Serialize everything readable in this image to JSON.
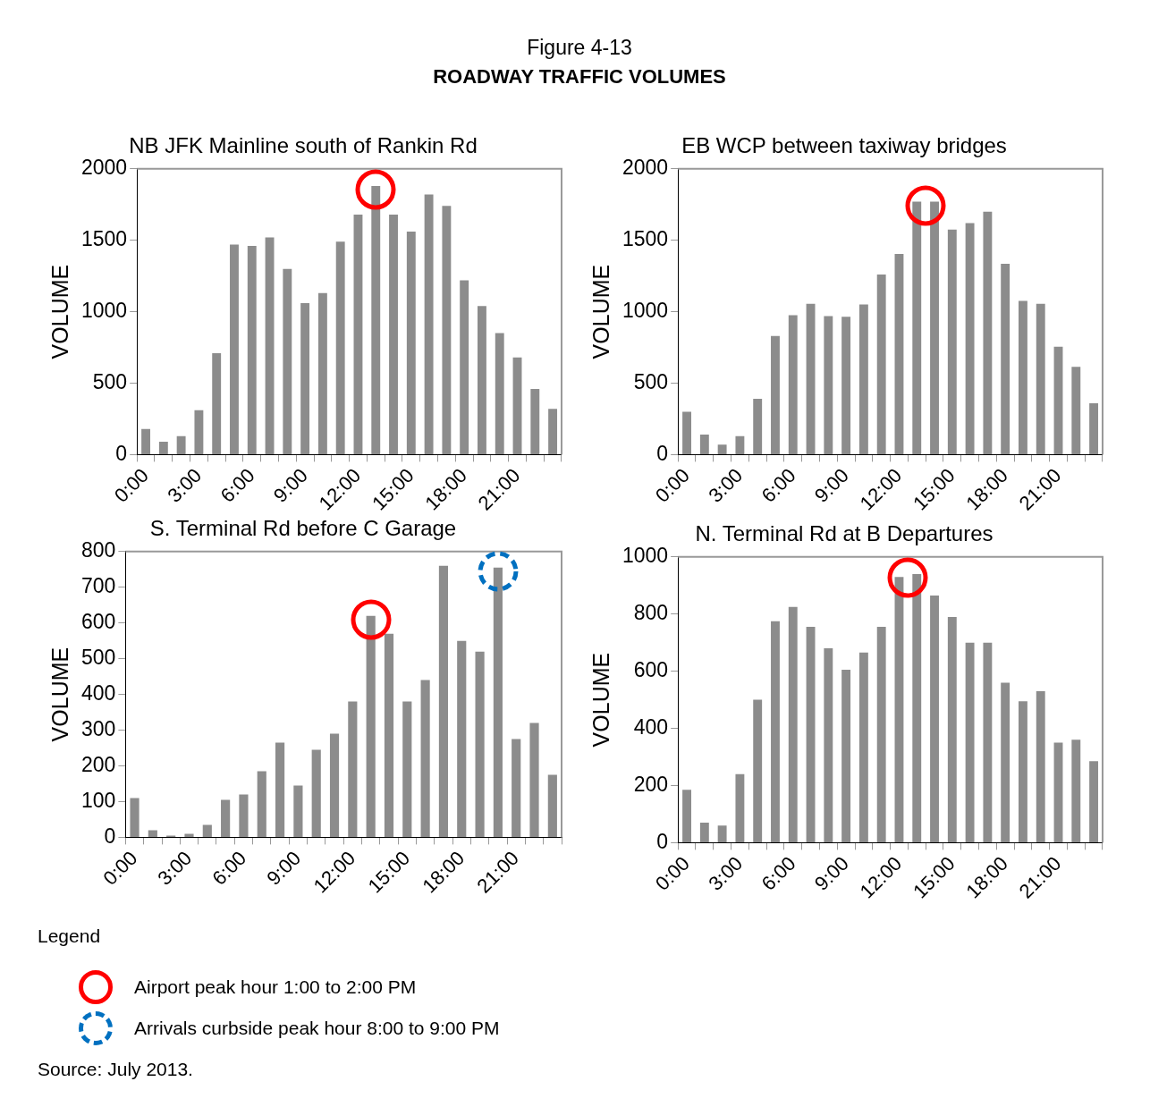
{
  "chart_data": [
    {
      "type": "other",
      "title": "Figure 4-13",
      "subtitle": "ROADWAY TRAFFIC VOLUMES"
    },
    {
      "type": "bar",
      "title": "NB JFK Mainline south of Rankin Rd",
      "ylabel": "VOLUME",
      "color": "#8c8c8c",
      "categories": [
        "0:00",
        null,
        null,
        "3:00",
        null,
        null,
        "6:00",
        null,
        null,
        "9:00",
        null,
        null,
        "12:00",
        null,
        null,
        "15:00",
        null,
        null,
        "18:00",
        null,
        null,
        "21:00",
        null,
        null
      ],
      "values": [
        180,
        90,
        130,
        310,
        710,
        1470,
        1460,
        1520,
        1300,
        1060,
        1130,
        1490,
        1680,
        1880,
        1680,
        1560,
        1820,
        1740,
        1220,
        1040,
        850,
        680,
        460,
        320
      ],
      "ylim": [
        0,
        2000
      ],
      "yticks": [
        0,
        500,
        1000,
        1500,
        2000
      ]
    },
    {
      "type": "bar",
      "title": "EB WCP between taxiway bridges",
      "ylabel": "VOLUME",
      "color": "#8c8c8c",
      "categories": [
        "0:00",
        null,
        null,
        "3:00",
        null,
        null,
        "6:00",
        null,
        null,
        "9:00",
        null,
        null,
        "12:00",
        null,
        null,
        "15:00",
        null,
        null,
        "18:00",
        null,
        null,
        "21:00",
        null,
        null
      ],
      "values": [
        300,
        140,
        70,
        130,
        390,
        830,
        975,
        1055,
        970,
        965,
        1050,
        1260,
        1405,
        1770,
        1770,
        1575,
        1620,
        1700,
        1335,
        1075,
        1055,
        755,
        615,
        360
      ],
      "ylim": [
        0,
        2000
      ],
      "yticks": [
        0,
        500,
        1000,
        1500,
        2000
      ]
    },
    {
      "type": "bar",
      "title": "S. Terminal Rd before C Garage",
      "ylabel": "VOLUME",
      "color": "#8c8c8c",
      "categories": [
        "0:00",
        null,
        null,
        "3:00",
        null,
        null,
        "6:00",
        null,
        null,
        "9:00",
        null,
        null,
        "12:00",
        null,
        null,
        "15:00",
        null,
        null,
        "18:00",
        null,
        null,
        "21:00",
        null,
        null
      ],
      "values": [
        110,
        20,
        5,
        10,
        35,
        105,
        120,
        185,
        265,
        145,
        245,
        290,
        380,
        620,
        570,
        380,
        440,
        760,
        550,
        520,
        755,
        275,
        320,
        175
      ],
      "ylim": [
        0,
        800
      ],
      "yticks": [
        0,
        100,
        200,
        300,
        400,
        500,
        600,
        700,
        800
      ]
    },
    {
      "type": "bar",
      "title": "N. Terminal Rd at B Departures",
      "ylabel": "VOLUME",
      "color": "#8c8c8c",
      "categories": [
        "0:00",
        null,
        null,
        "3:00",
        null,
        null,
        "6:00",
        null,
        null,
        "9:00",
        null,
        null,
        "12:00",
        null,
        null,
        "15:00",
        null,
        null,
        "18:00",
        null,
        null,
        "21:00",
        null,
        null
      ],
      "values": [
        185,
        70,
        60,
        240,
        500,
        775,
        825,
        755,
        680,
        605,
        665,
        755,
        930,
        940,
        865,
        790,
        700,
        700,
        560,
        495,
        530,
        350,
        360,
        285
      ],
      "ylim": [
        0,
        1000
      ],
      "yticks": [
        0,
        200,
        400,
        600,
        800,
        1000
      ]
    },
    {
      "type": "other",
      "legend_title": "Legend",
      "annotations": [
        "Airport peak hour 1:00 to 2:00 PM",
        "Arrivals curbside peak hour 8:00 to 9:00 PM",
        "Source:  July 2013."
      ]
    }
  ]
}
